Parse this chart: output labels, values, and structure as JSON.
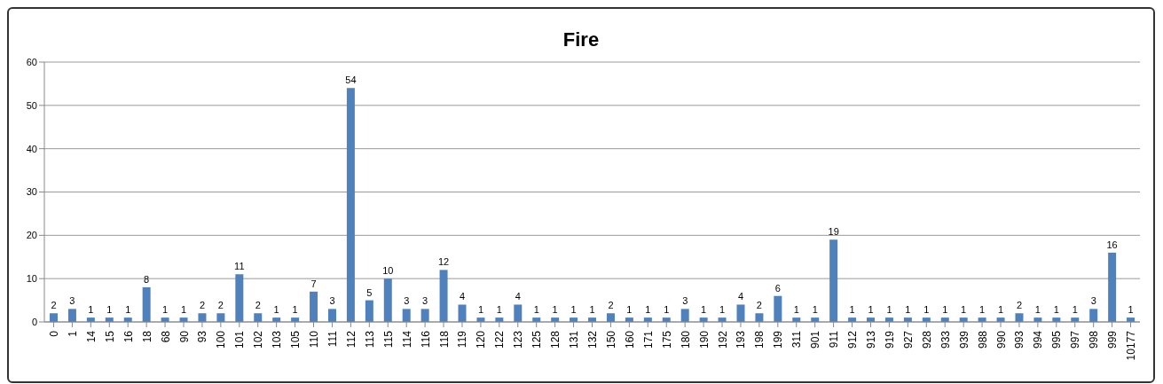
{
  "chart_data": {
    "type": "bar",
    "title": "Fire",
    "categories": [
      "0",
      "1",
      "14",
      "15",
      "16",
      "18",
      "68",
      "90",
      "93",
      "100",
      "101",
      "102",
      "103",
      "105",
      "110",
      "111",
      "112",
      "113",
      "115",
      "114",
      "116",
      "118",
      "119",
      "120",
      "122",
      "123",
      "125",
      "128",
      "131",
      "132",
      "150",
      "160",
      "171",
      "175",
      "180",
      "190",
      "192",
      "193",
      "198",
      "199",
      "311",
      "901",
      "911",
      "912",
      "913",
      "919",
      "927",
      "928",
      "933",
      "939",
      "988",
      "990",
      "993",
      "994",
      "995",
      "997",
      "998",
      "999",
      "10177"
    ],
    "values": [
      2,
      3,
      1,
      1,
      1,
      8,
      1,
      1,
      2,
      2,
      11,
      2,
      1,
      1,
      7,
      3,
      54,
      5,
      10,
      3,
      3,
      12,
      4,
      1,
      1,
      4,
      1,
      1,
      1,
      1,
      2,
      1,
      1,
      1,
      3,
      1,
      1,
      4,
      2,
      6,
      1,
      1,
      19,
      1,
      1,
      1,
      1,
      1,
      1,
      1,
      1,
      1,
      2,
      1,
      1,
      1,
      3,
      16,
      1
    ],
    "color": "#4f81bd",
    "ylim": [
      0,
      60
    ],
    "yticks": [
      0,
      10,
      20,
      30,
      40,
      50,
      60
    ],
    "grid": "y",
    "data_labels": true
  }
}
